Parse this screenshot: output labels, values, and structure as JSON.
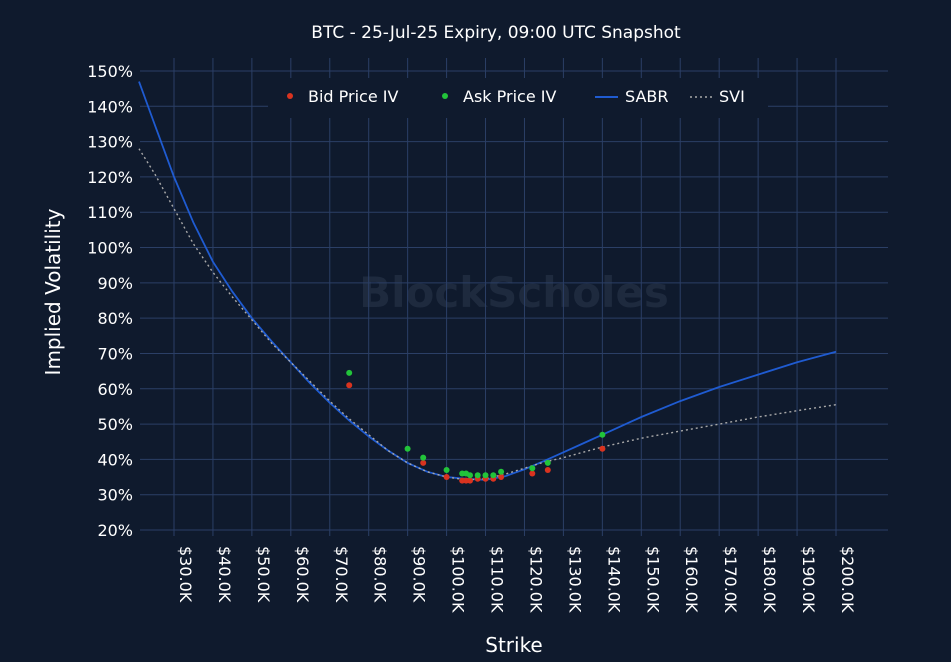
{
  "colors": {
    "background": "#0f1a2d",
    "grid": "#2b3f66",
    "bid": "#d9331f",
    "ask": "#22c43a",
    "sabr": "#1f5bd1",
    "svi": "#a9a9a9",
    "text": "#ffffff"
  },
  "watermark": "BlockScholes",
  "chart_data": {
    "type": "scatter",
    "title": "BTC - 25-Jul-25 Expiry, 09:00 UTC Snapshot",
    "xlabel": "Strike",
    "ylabel": "Implied Volatility",
    "xlim": [
      22000,
      206000
    ],
    "ylim": [
      20,
      152
    ],
    "grid": true,
    "legend_position": "top-center",
    "x_ticks": [
      30000,
      40000,
      50000,
      60000,
      70000,
      80000,
      90000,
      100000,
      110000,
      120000,
      130000,
      140000,
      150000,
      160000,
      170000,
      180000,
      190000,
      200000
    ],
    "x_tick_labels": [
      "$30.0K",
      "$40.0K",
      "$50.0K",
      "$60.0K",
      "$70.0K",
      "$80.0K",
      "$90.0K",
      "$100.0K",
      "$110.0K",
      "$120.0K",
      "$130.0K",
      "$140.0K",
      "$150.0K",
      "$160.0K",
      "$170.0K",
      "$180.0K",
      "$190.0K",
      "$200.0K"
    ],
    "y_ticks": [
      20,
      30,
      40,
      50,
      60,
      70,
      80,
      90,
      100,
      110,
      120,
      130,
      140,
      150
    ],
    "y_tick_labels": [
      "20%",
      "30%",
      "40%",
      "50%",
      "60%",
      "70%",
      "80%",
      "90%",
      "100%",
      "110%",
      "120%",
      "130%",
      "140%",
      "150%"
    ],
    "series": [
      {
        "name": "Bid Price IV",
        "kind": "scatter",
        "color": "#d9331f",
        "points": [
          [
            75000,
            61
          ],
          [
            94000,
            39
          ],
          [
            100000,
            35
          ],
          [
            104000,
            34
          ],
          [
            105000,
            34
          ],
          [
            106000,
            34
          ],
          [
            108000,
            34.5
          ],
          [
            110000,
            34.5
          ],
          [
            112000,
            34.5
          ],
          [
            114000,
            35
          ],
          [
            122000,
            36
          ],
          [
            126000,
            37
          ],
          [
            140000,
            43
          ]
        ]
      },
      {
        "name": "Ask Price IV",
        "kind": "scatter",
        "color": "#22c43a",
        "points": [
          [
            75000,
            64.5
          ],
          [
            90000,
            43
          ],
          [
            94000,
            40.5
          ],
          [
            100000,
            37
          ],
          [
            104000,
            36
          ],
          [
            105000,
            36
          ],
          [
            106000,
            35.5
          ],
          [
            108000,
            35.5
          ],
          [
            110000,
            35.5
          ],
          [
            112000,
            35.5
          ],
          [
            114000,
            36.5
          ],
          [
            122000,
            37.5
          ],
          [
            126000,
            39
          ],
          [
            140000,
            47
          ]
        ]
      },
      {
        "name": "SABR",
        "kind": "line",
        "color": "#1f5bd1",
        "points": [
          [
            21000,
            147
          ],
          [
            25000,
            135
          ],
          [
            30000,
            120
          ],
          [
            35000,
            107
          ],
          [
            40000,
            96
          ],
          [
            45000,
            87.5
          ],
          [
            50000,
            80
          ],
          [
            55000,
            73.5
          ],
          [
            60000,
            67.5
          ],
          [
            65000,
            61.5
          ],
          [
            70000,
            56
          ],
          [
            75000,
            51
          ],
          [
            80000,
            46.5
          ],
          [
            85000,
            42.5
          ],
          [
            90000,
            39
          ],
          [
            95000,
            36.5
          ],
          [
            100000,
            35
          ],
          [
            105000,
            34.5
          ],
          [
            110000,
            34.2
          ],
          [
            115000,
            35.2
          ],
          [
            120000,
            37.2
          ],
          [
            125000,
            39.5
          ],
          [
            130000,
            42
          ],
          [
            135000,
            44.5
          ],
          [
            140000,
            47
          ],
          [
            150000,
            52
          ],
          [
            160000,
            56.5
          ],
          [
            170000,
            60.5
          ],
          [
            180000,
            64
          ],
          [
            190000,
            67.5
          ],
          [
            200000,
            70.5
          ]
        ]
      },
      {
        "name": "SVI",
        "kind": "line",
        "dashed": true,
        "color": "#a9a9a9",
        "points": [
          [
            21000,
            128
          ],
          [
            25000,
            121
          ],
          [
            30000,
            111
          ],
          [
            35000,
            101
          ],
          [
            40000,
            93
          ],
          [
            45000,
            86
          ],
          [
            50000,
            79.5
          ],
          [
            55000,
            73
          ],
          [
            60000,
            67.5
          ],
          [
            65000,
            62
          ],
          [
            70000,
            56.5
          ],
          [
            75000,
            51.5
          ],
          [
            80000,
            47
          ],
          [
            85000,
            42.5
          ],
          [
            90000,
            39
          ],
          [
            95000,
            36.5
          ],
          [
            100000,
            35
          ],
          [
            105000,
            34.2
          ],
          [
            110000,
            34.5
          ],
          [
            115000,
            35.8
          ],
          [
            120000,
            37.5
          ],
          [
            125000,
            39.2
          ],
          [
            130000,
            40.5
          ],
          [
            140000,
            43.5
          ],
          [
            150000,
            46
          ],
          [
            160000,
            48
          ],
          [
            170000,
            50
          ],
          [
            180000,
            52
          ],
          [
            190000,
            53.8
          ],
          [
            200000,
            55.5
          ]
        ]
      }
    ]
  }
}
